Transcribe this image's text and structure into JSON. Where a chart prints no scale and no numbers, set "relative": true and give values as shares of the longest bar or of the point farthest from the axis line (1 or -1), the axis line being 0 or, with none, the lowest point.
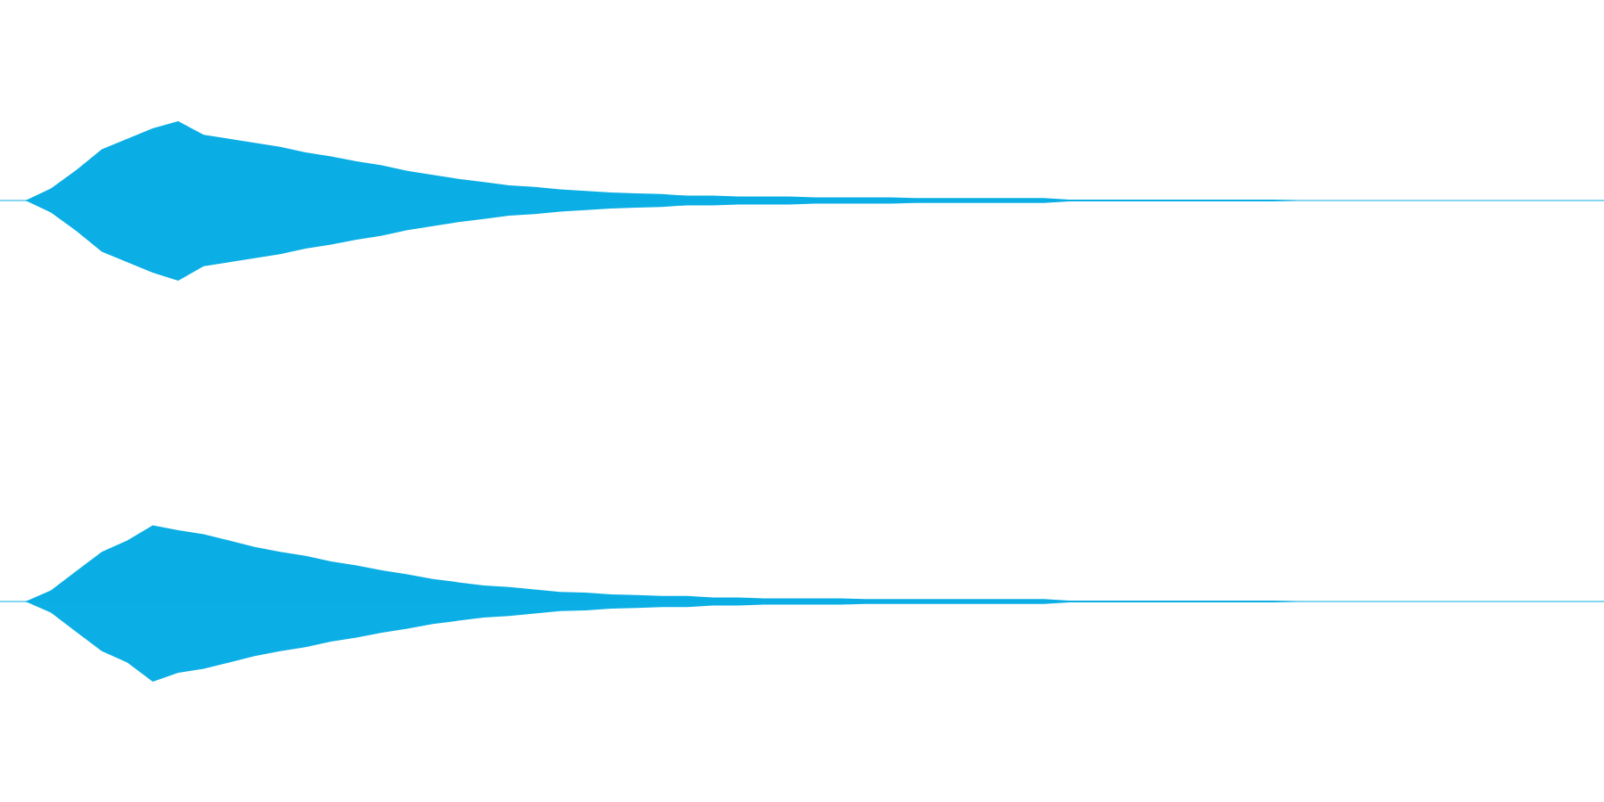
{
  "chart_data": [
    {
      "type": "area",
      "relative": true,
      "categories": [
        null,
        null,
        null,
        null,
        null,
        null,
        null,
        null,
        null,
        null,
        null,
        null,
        null,
        null,
        null,
        null,
        null,
        null,
        null,
        null,
        null,
        null,
        null,
        null,
        null,
        null,
        null,
        null,
        null,
        null,
        null,
        null,
        null,
        null,
        null,
        null,
        null,
        null,
        null,
        null,
        null,
        null,
        null,
        null,
        null,
        null,
        null,
        null,
        null,
        null,
        null,
        null,
        null,
        null,
        null,
        null,
        null,
        null,
        null,
        null,
        null,
        null,
        null,
        null
      ],
      "legend": false,
      "series": [
        {
          "color": "#0aaee4",
          "values": [
            0,
            0,
            0.15,
            0.38,
            0.64,
            0.77,
            0.9,
            0.99,
            0.82,
            0.77,
            0.72,
            0.67,
            0.6,
            0.55,
            0.49,
            0.44,
            0.37,
            0.32,
            0.27,
            0.23,
            0.19,
            0.17,
            0.14,
            0.12,
            0.1,
            0.09,
            0.08,
            0.06,
            0.06,
            0.05,
            0.05,
            0.05,
            0.04,
            0.04,
            0.04,
            0.04,
            0.03,
            0.03,
            0.03,
            0.03,
            0.03,
            0.03,
            0.01,
            0.01,
            0.01,
            0.01,
            0.01,
            0.01,
            0.01,
            0.01,
            0.01,
            0,
            0,
            0,
            0,
            0,
            0,
            0,
            0,
            0,
            0,
            0,
            0,
            0
          ]
        },
        {
          "color": "#0bafe5",
          "values": [
            0,
            0,
            -0.15,
            -0.38,
            -0.64,
            -0.77,
            -0.9,
            -1,
            -0.82,
            -0.77,
            -0.72,
            -0.67,
            -0.6,
            -0.55,
            -0.49,
            -0.44,
            -0.37,
            -0.32,
            -0.27,
            -0.23,
            -0.19,
            -0.17,
            -0.14,
            -0.12,
            -0.1,
            -0.09,
            -0.08,
            -0.06,
            -0.06,
            -0.05,
            -0.05,
            -0.05,
            -0.04,
            -0.04,
            -0.04,
            -0.04,
            -0.03,
            -0.03,
            -0.03,
            -0.03,
            -0.03,
            -0.03,
            -0.01,
            -0.01,
            -0.01,
            -0.01,
            -0.01,
            -0.01,
            -0.01,
            -0.01,
            -0.01,
            0,
            0,
            0,
            0,
            0,
            0,
            0,
            0,
            0,
            0,
            0,
            0,
            0
          ]
        }
      ]
    },
    {
      "type": "area",
      "relative": true,
      "categories": [
        null,
        null,
        null,
        null,
        null,
        null,
        null,
        null,
        null,
        null,
        null,
        null,
        null,
        null,
        null,
        null,
        null,
        null,
        null,
        null,
        null,
        null,
        null,
        null,
        null,
        null,
        null,
        null,
        null,
        null,
        null,
        null,
        null,
        null,
        null,
        null,
        null,
        null,
        null,
        null,
        null,
        null,
        null,
        null,
        null,
        null,
        null,
        null,
        null,
        null,
        null,
        null,
        null,
        null,
        null,
        null,
        null,
        null,
        null,
        null,
        null,
        null,
        null,
        null
      ],
      "legend": false,
      "series": [
        {
          "color": "#0aaee4",
          "values": [
            0,
            0,
            0.14,
            0.38,
            0.62,
            0.76,
            0.95,
            0.89,
            0.84,
            0.76,
            0.68,
            0.62,
            0.57,
            0.5,
            0.45,
            0.39,
            0.34,
            0.28,
            0.24,
            0.2,
            0.18,
            0.15,
            0.12,
            0.11,
            0.09,
            0.08,
            0.07,
            0.07,
            0.05,
            0.05,
            0.04,
            0.04,
            0.04,
            0.04,
            0.03,
            0.03,
            0.03,
            0.03,
            0.03,
            0.03,
            0.03,
            0.03,
            0.01,
            0.01,
            0.01,
            0.01,
            0.01,
            0.01,
            0.01,
            0.01,
            0.01,
            0,
            0,
            0,
            0,
            0,
            0,
            0,
            0,
            0,
            0,
            0,
            0,
            0
          ]
        },
        {
          "color": "#0bafe5",
          "values": [
            0,
            0,
            -0.14,
            -0.38,
            -0.62,
            -0.76,
            -1,
            -0.89,
            -0.84,
            -0.76,
            -0.68,
            -0.62,
            -0.57,
            -0.5,
            -0.45,
            -0.39,
            -0.34,
            -0.28,
            -0.24,
            -0.2,
            -0.18,
            -0.15,
            -0.12,
            -0.11,
            -0.09,
            -0.08,
            -0.07,
            -0.07,
            -0.05,
            -0.05,
            -0.04,
            -0.04,
            -0.04,
            -0.04,
            -0.03,
            -0.03,
            -0.03,
            -0.03,
            -0.03,
            -0.03,
            -0.03,
            -0.03,
            -0.01,
            -0.01,
            -0.01,
            -0.01,
            -0.01,
            -0.01,
            -0.01,
            -0.01,
            -0.01,
            0,
            0,
            0,
            0,
            0,
            0,
            0,
            0,
            0,
            0,
            0,
            0,
            0
          ]
        }
      ]
    }
  ]
}
